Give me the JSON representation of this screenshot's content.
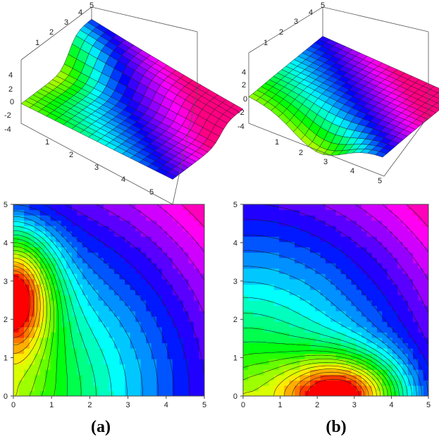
{
  "figure": {
    "panels": [
      {
        "caption": "(a)",
        "peak_axis": "y",
        "surface_mode": "ridge"
      },
      {
        "caption": "(b)",
        "peak_axis": "x",
        "surface_mode": "trough"
      }
    ]
  },
  "chart_data": [
    {
      "type": "surface",
      "panel": "(a)",
      "x_ticks": [
        "1",
        "2",
        "3",
        "4",
        "5"
      ],
      "y_ticks": [
        "1",
        "2",
        "3",
        "4",
        "5"
      ],
      "z_ticks": [
        "4",
        "2",
        "0",
        "-2",
        "-4"
      ],
      "xlim": [
        0,
        5
      ],
      "ylim": [
        0,
        5
      ],
      "zlim": [
        -4,
        5
      ],
      "colormap": "hue-rainbow (red-yellow-green-cyan-blue-magenta-red)"
    },
    {
      "type": "surface",
      "panel": "(b)",
      "x_ticks": [
        "1",
        "2",
        "3",
        "4",
        "5"
      ],
      "y_ticks": [
        "1",
        "2",
        "3",
        "4",
        "5"
      ],
      "z_ticks": [
        "4",
        "2",
        "0",
        "-2",
        "-4"
      ],
      "xlim": [
        0,
        5
      ],
      "ylim": [
        0,
        5
      ],
      "zlim": [
        -4,
        5
      ],
      "colormap": "hue-rainbow (red-yellow-green-cyan-blue-magenta-red)"
    },
    {
      "type": "heatmap",
      "subtype": "contour",
      "panel": "(a)",
      "x_ticks": [
        "0",
        "1",
        "2",
        "3",
        "4",
        "5"
      ],
      "y_ticks": [
        "0",
        "1",
        "2",
        "3",
        "4",
        "5"
      ],
      "xlim": [
        0,
        5
      ],
      "ylim": [
        0,
        5
      ],
      "hot_spot": {
        "x": 0.0,
        "y": 2.7
      },
      "max_corner": {
        "x": 5,
        "y": 5
      },
      "colormap": "hue-rainbow"
    },
    {
      "type": "heatmap",
      "subtype": "contour",
      "panel": "(b)",
      "x_ticks": [
        "0",
        "1",
        "2",
        "3",
        "4",
        "5"
      ],
      "y_ticks": [
        "0",
        "1",
        "2",
        "3",
        "4",
        "5"
      ],
      "xlim": [
        0,
        5
      ],
      "ylim": [
        0,
        5
      ],
      "hot_spot": {
        "x": 2.7,
        "y": 0.0
      },
      "max_corner": {
        "x": 5,
        "y": 5
      },
      "colormap": "hue-rainbow"
    }
  ]
}
